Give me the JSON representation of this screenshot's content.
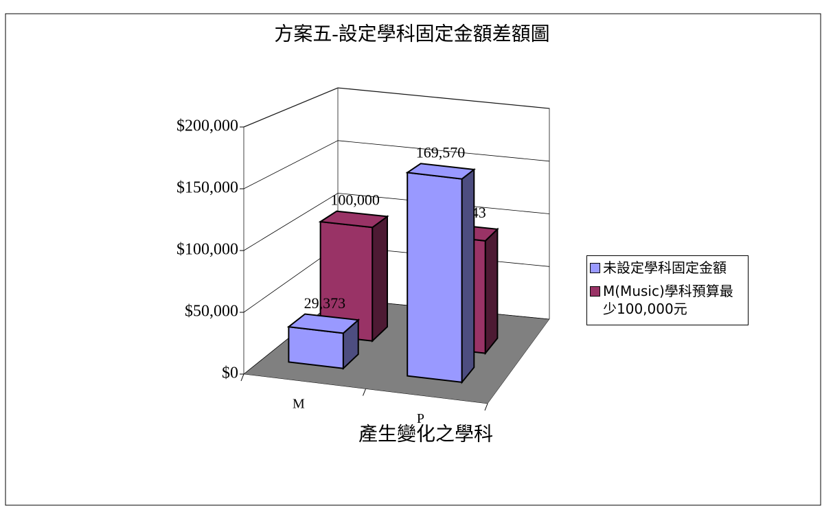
{
  "chart_data": {
    "type": "bar3d",
    "title": "方案五-設定學科固定金額差額圖",
    "x_label": "產生變化之學科",
    "categories": [
      "M",
      "P"
    ],
    "series": [
      {
        "name": "未設定學科固定金額",
        "color": "#9999ff",
        "values": [
          29373,
          169570
        ],
        "value_labels": [
          "29,373",
          "169,570"
        ]
      },
      {
        "name": "M(Music)學科預算最少100,000元",
        "color": "#993366",
        "values": [
          100000,
          98943
        ],
        "value_labels": [
          "100,000",
          "98,943"
        ]
      }
    ],
    "ylim": [
      0,
      200000
    ],
    "yticks": [
      {
        "value": 0,
        "label": "$0"
      },
      {
        "value": 50000,
        "label": "$50,000"
      },
      {
        "value": 100000,
        "label": "$100,000"
      },
      {
        "value": 150000,
        "label": "$150,000"
      },
      {
        "value": 200000,
        "label": "$200,000"
      }
    ],
    "grid": true,
    "legend": "right"
  }
}
